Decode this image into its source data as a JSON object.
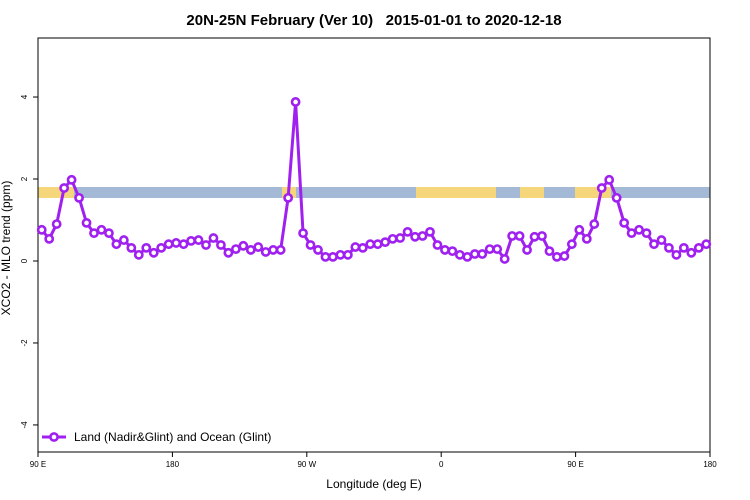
{
  "chart_data": {
    "type": "line",
    "title": "20N-25N February (Ver 10)   2015-01-01 to 2020-12-18",
    "x_label": "Longitude (deg E)",
    "y_label": "XCO2 - MLO trend (ppm)",
    "xlim": [
      90,
      540
    ],
    "ylim": [
      -4.66,
      5.44
    ],
    "xticks": [
      {
        "value": 90,
        "label": "90 E"
      },
      {
        "value": 180,
        "label": "180"
      },
      {
        "value": 270,
        "label": "90 W"
      },
      {
        "value": 360,
        "label": "0"
      },
      {
        "value": 450,
        "label": "90 E"
      },
      {
        "value": 540,
        "label": "180"
      }
    ],
    "yticks": [
      -4,
      -2,
      0,
      2,
      4
    ],
    "legend": "bottom-left",
    "x": [
      92.5,
      97.5,
      102.5,
      107.5,
      112.5,
      117.5,
      122.5,
      127.5,
      132.5,
      137.5,
      142.5,
      147.5,
      152.5,
      157.5,
      162.5,
      167.5,
      172.5,
      177.5,
      182.5,
      187.5,
      192.5,
      197.5,
      202.5,
      207.5,
      212.5,
      217.5,
      222.5,
      227.5,
      232.5,
      237.5,
      242.5,
      247.5,
      252.5,
      257.5,
      262.5,
      267.5,
      272.5,
      277.5,
      282.5,
      287.5,
      292.5,
      297.5,
      302.5,
      307.5,
      312.5,
      317.5,
      322.5,
      327.5,
      332.5,
      337.5,
      342.5,
      347.5,
      352.5,
      357.5,
      362.5,
      367.5,
      372.5,
      377.5,
      382.5,
      387.5,
      392.5,
      397.5,
      402.5,
      407.5,
      412.5,
      417.5,
      422.5,
      427.5,
      432.5,
      437.5,
      442.5,
      447.5,
      452.5,
      457.5,
      462.5,
      467.5,
      472.5,
      477.5,
      482.5,
      487.5,
      492.5,
      497.5,
      502.5,
      507.5,
      512.5,
      517.5,
      522.5,
      527.5,
      532.5,
      537.5
    ],
    "series": [
      {
        "name": "Land (Nadir&Glint) and Ocean (Glint)",
        "color": "#a020f0",
        "values": [
          0.76,
          0.54,
          0.9,
          1.78,
          1.98,
          1.54,
          0.93,
          0.68,
          0.76,
          0.68,
          0.41,
          0.51,
          0.32,
          0.15,
          0.32,
          0.2,
          0.32,
          0.41,
          0.44,
          0.41,
          0.49,
          0.51,
          0.39,
          0.56,
          0.39,
          0.2,
          0.29,
          0.37,
          0.27,
          0.34,
          0.22,
          0.27,
          0.27,
          1.54,
          3.88,
          0.68,
          0.39,
          0.27,
          0.1,
          0.1,
          0.15,
          0.15,
          0.34,
          0.32,
          0.41,
          0.41,
          0.46,
          0.54,
          0.56,
          0.71,
          0.59,
          0.61,
          0.71,
          0.39,
          0.27,
          0.24,
          0.15,
          0.1,
          0.17,
          0.17,
          0.29,
          0.29,
          0.05,
          0.61,
          0.61,
          0.27,
          0.59,
          0.61,
          0.24,
          0.1,
          0.12,
          0.41,
          0.76,
          0.54,
          0.9,
          1.78,
          1.98,
          1.54,
          0.93,
          0.68,
          0.76,
          0.68,
          0.41,
          0.51,
          0.32,
          0.15,
          0.32,
          0.2,
          0.32,
          0.41
        ]
      }
    ]
  }
}
